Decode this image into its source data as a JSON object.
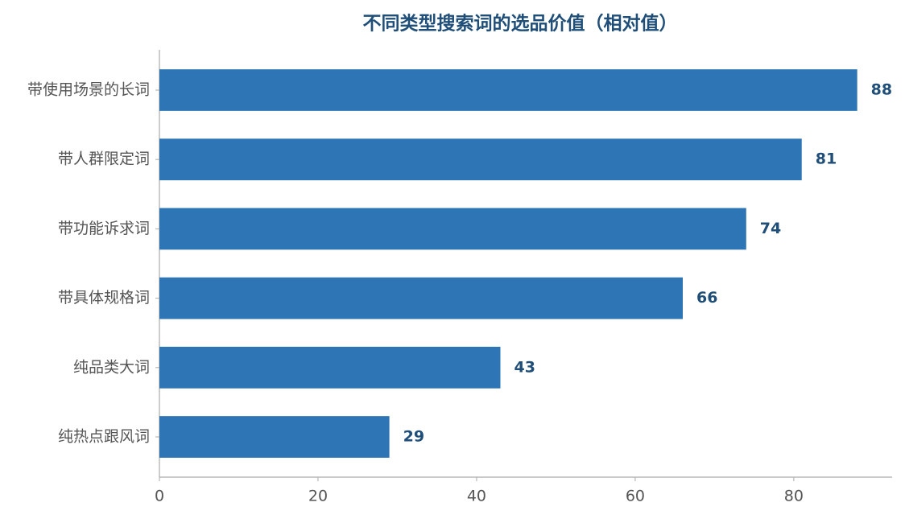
{
  "chart_data": {
    "type": "barh",
    "title": "不同类型搜索词的选品价值（相对值）",
    "categories": [
      "带使用场景的长词",
      "带人群限定词",
      "带功能诉求词",
      "带具体规格词",
      "纯品类大词",
      "纯热点跟风词"
    ],
    "values": [
      88,
      81,
      74,
      66,
      43,
      29
    ],
    "color": "#2e75b6",
    "xlim": [
      0,
      92.4
    ],
    "xticks": [
      0,
      20,
      40,
      60,
      80
    ],
    "grid": false
  }
}
